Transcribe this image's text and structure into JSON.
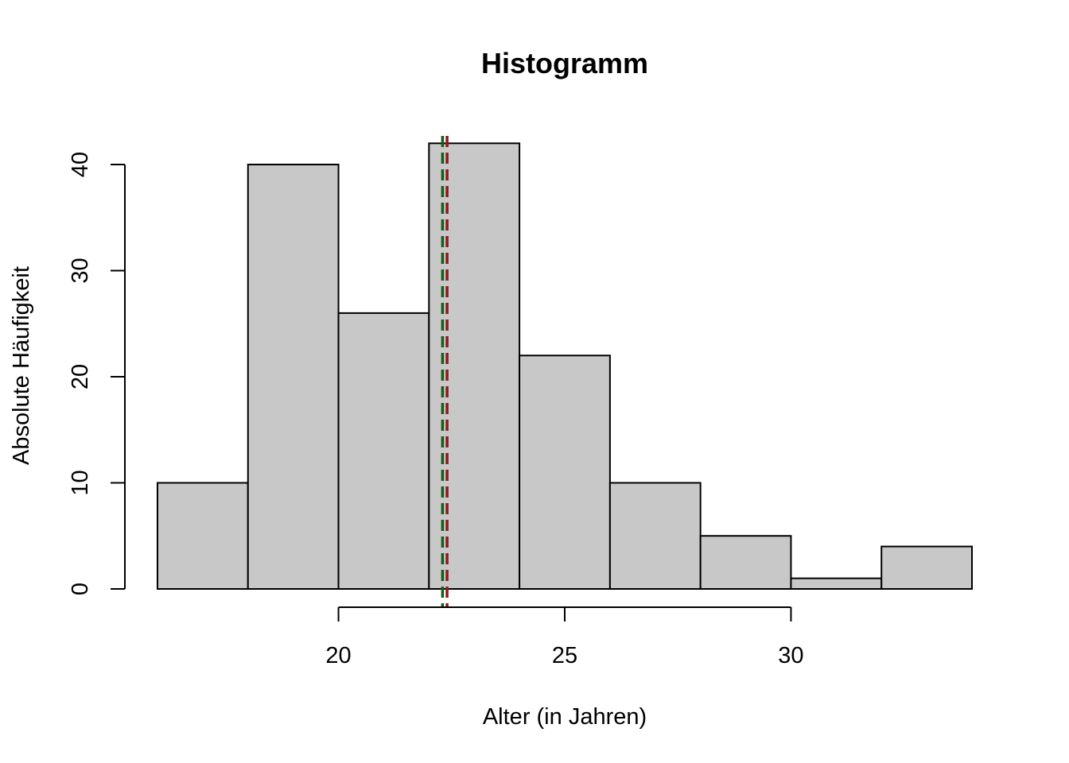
{
  "chart_data": {
    "type": "bar",
    "title": "Histogramm",
    "xlabel": "Alter (in Jahren)",
    "ylabel": "Absolute Häufigkeit",
    "bins": [
      {
        "from": 16,
        "to": 18,
        "count": 10
      },
      {
        "from": 18,
        "to": 20,
        "count": 40
      },
      {
        "from": 20,
        "to": 22,
        "count": 26
      },
      {
        "from": 22,
        "to": 24,
        "count": 42
      },
      {
        "from": 24,
        "to": 26,
        "count": 22
      },
      {
        "from": 26,
        "to": 28,
        "count": 10
      },
      {
        "from": 28,
        "to": 30,
        "count": 5
      },
      {
        "from": 30,
        "to": 32,
        "count": 1
      },
      {
        "from": 32,
        "to": 34,
        "count": 4
      }
    ],
    "xlim": [
      16,
      34
    ],
    "ylim": [
      0,
      42
    ],
    "x_axis_range": [
      20,
      30
    ],
    "x_ticks": [
      20,
      25,
      30
    ],
    "y_ticks": [
      0,
      10,
      20,
      30,
      40
    ],
    "grid": false,
    "legend": "none",
    "vlines": [
      {
        "x": 22.3,
        "color": "#1a5a1a",
        "style": "dashed"
      },
      {
        "x": 22.4,
        "color": "#8b1a1a",
        "style": "dashed"
      }
    ],
    "bar_color": "#c8c8c8"
  }
}
